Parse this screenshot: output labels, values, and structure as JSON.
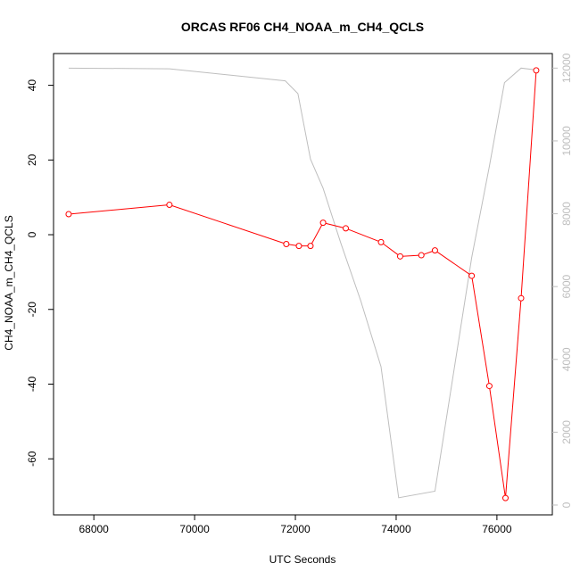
{
  "chart_data": {
    "type": "line",
    "title": "ORCAS RF06 CH4_NOAA_m_CH4_QCLS",
    "xlabel": "UTC Seconds",
    "ylabel": "CH4_NOAA_m_CH4_QCLS",
    "xlim": [
      67200,
      77100
    ],
    "ylim": [
      -75,
      48.5
    ],
    "y2lim": [
      -270,
      12400
    ],
    "x_ticks": [
      68000,
      70000,
      72000,
      74000,
      76000
    ],
    "y_ticks": [
      -60,
      -40,
      -20,
      0,
      20,
      40
    ],
    "y2_ticks": [
      0,
      2000,
      4000,
      6000,
      8000,
      10000,
      12000
    ],
    "grid": false,
    "colors": {
      "primary": "#ff0000",
      "secondary": "#bebebe",
      "axis": "#000000"
    },
    "series": [
      {
        "axis": "left",
        "marker": "circle",
        "x": [
          67500,
          69500,
          71820,
          72070,
          72300,
          72550,
          73000,
          73700,
          74080,
          74500,
          74770,
          75500,
          75850,
          76170,
          76480,
          76780
        ],
        "y": [
          5.5,
          8.0,
          -2.5,
          -3.0,
          -3.0,
          3.2,
          1.7,
          -2.0,
          -5.8,
          -5.5,
          -4.2,
          -11.0,
          -40.5,
          -70.5,
          -17.0,
          44.0
        ]
      },
      {
        "axis": "right",
        "marker": "none",
        "x": [
          67500,
          69500,
          71800,
          72050,
          72300,
          72550,
          72900,
          73300,
          73700,
          74050,
          74770,
          75500,
          75850,
          76150,
          76480,
          76780
        ],
        "y": [
          12000,
          11980,
          11650,
          11300,
          9500,
          8700,
          7200,
          5600,
          3800,
          200,
          380,
          6800,
          9300,
          11600,
          12000,
          11950
        ]
      }
    ]
  }
}
